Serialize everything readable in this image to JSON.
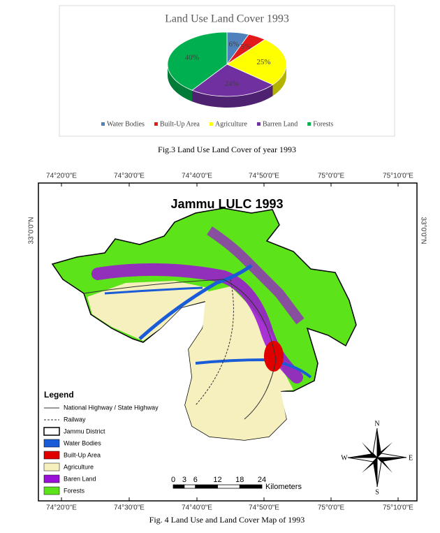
{
  "chart_data": {
    "type": "pie",
    "title": "Land Use Land Cover 1993",
    "categories": [
      "Water Bodies",
      "Built-Up Area",
      "Agriculture",
      "Barren Land",
      "Forests"
    ],
    "values": [
      6,
      5,
      25,
      24,
      40
    ],
    "value_labels": [
      "6%",
      "5%",
      "25%",
      "24%",
      "40%"
    ],
    "colors": [
      "#4f81bd",
      "#e31a1c",
      "#ffff00",
      "#7030a0",
      "#00b050"
    ],
    "legend": "bottom"
  },
  "figure3_caption": "Fig.3 Land Use Land Cover of year 1993",
  "map": {
    "title": "Jammu LULC 1993",
    "longitudes": [
      "74°20'0\"E",
      "74°30'0\"E",
      "74°40'0\"E",
      "74°50'0\"E",
      "75°0'0\"E",
      "75°10'0\"E"
    ],
    "latitude": "33°0'0\"N",
    "legend_title": "Legend",
    "legend": [
      "National Highway / State Highway",
      "Railway",
      "Jammu District",
      "Water Bodies",
      "Built-Up Area",
      "Agriculture",
      "Baren Land",
      "Forests"
    ],
    "scale_ticks": [
      0,
      3,
      6,
      12,
      18,
      24
    ],
    "scale_unit": "Kilometers",
    "compass": {
      "n": "N",
      "e": "E",
      "s": "S",
      "w": "W"
    }
  },
  "figure4_caption": "Fig. 4 Land Use and Land Cover Map of 1993"
}
